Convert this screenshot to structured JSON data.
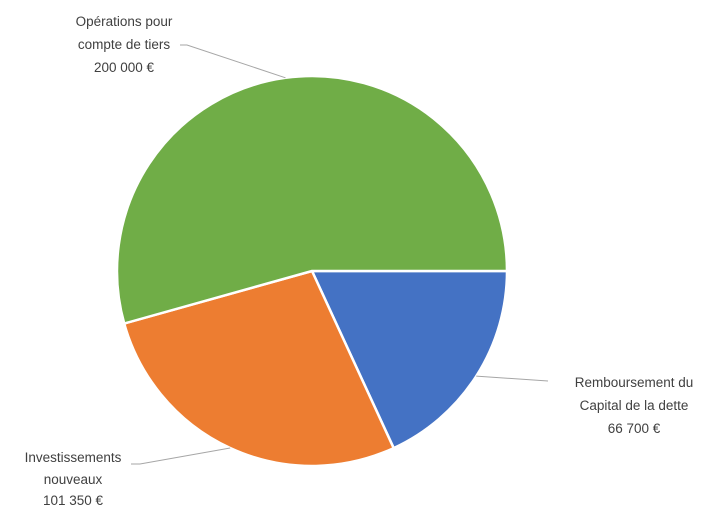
{
  "chart_data": {
    "type": "pie",
    "title": "",
    "categories": [
      "Remboursement du Capital de la dette",
      "Investissements nouveaux",
      "Opérations pour compte de tiers"
    ],
    "values": [
      66700,
      101350,
      200000
    ],
    "colors": [
      "#4472c4",
      "#ed7d31",
      "#70ad47"
    ],
    "start_angle_deg": 0,
    "direction": "clockwise",
    "legend": "none",
    "data_labels": [
      {
        "lines": [
          "Remboursement du",
          "Capital de la dette"
        ],
        "value_text": "66 700 €"
      },
      {
        "lines": [
          "Investissements",
          "nouveaux"
        ],
        "value_text": "101 350 €"
      },
      {
        "lines": [
          "Opérations pour",
          "compte de tiers"
        ],
        "value_text": "200 000 €"
      }
    ]
  }
}
